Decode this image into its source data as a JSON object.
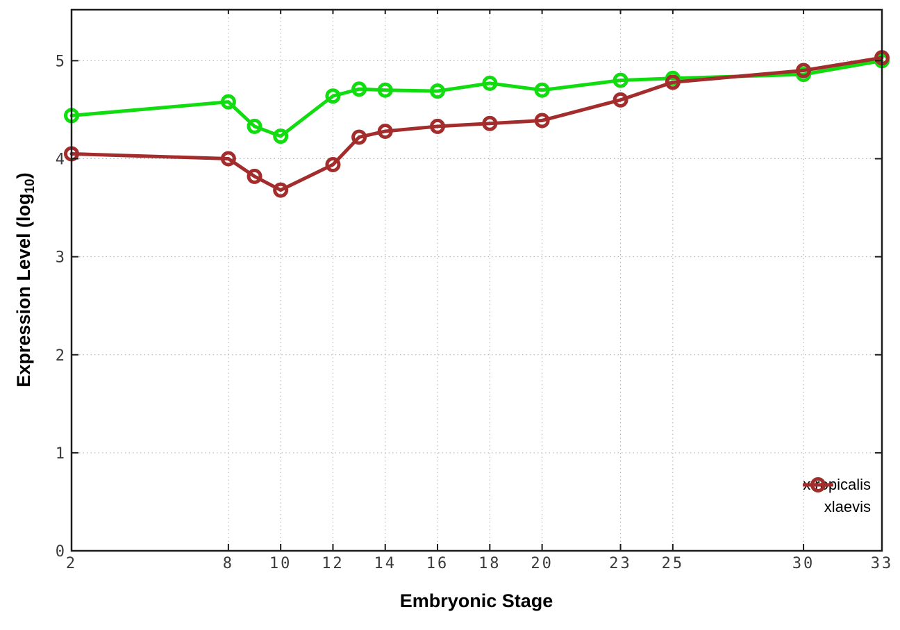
{
  "figure": {
    "xlabel": "Embryonic Stage",
    "ylabel": {
      "prefix": "Expression Level (log",
      "sub": "10",
      "suffix": ")"
    },
    "background": "#ffffff"
  },
  "chart_data": {
    "type": "line",
    "title": "",
    "xlabel": "Embryonic Stage",
    "ylabel": "Expression Level (log10)",
    "x": [
      2,
      8,
      9,
      10,
      12,
      13,
      14,
      16,
      18,
      20,
      23,
      25,
      30,
      33
    ],
    "series": [
      {
        "name": "xtropicalis",
        "color": "#10dc10",
        "values": [
          4.44,
          4.58,
          4.33,
          4.23,
          4.64,
          4.71,
          4.7,
          4.69,
          4.77,
          4.7,
          4.8,
          4.82,
          4.86,
          5.0
        ]
      },
      {
        "name": "xlaevis",
        "color": "#a32c2c",
        "values": [
          4.05,
          4.0,
          3.82,
          3.68,
          3.94,
          4.22,
          4.28,
          4.33,
          4.36,
          4.39,
          4.6,
          4.78,
          4.9,
          5.03
        ]
      }
    ],
    "xticks": [
      2,
      8,
      10,
      12,
      14,
      16,
      18,
      20,
      23,
      25,
      30,
      33
    ],
    "yticks": [
      0,
      1,
      2,
      3,
      4,
      5
    ],
    "xlim": [
      2,
      33
    ],
    "ylim": [
      0,
      5.52
    ],
    "grid": "dotted",
    "legend_position": "inside-right-bottom",
    "marker": "open-circle",
    "axis_color": "#1c1c1c",
    "tick_label_color": "#3a3a3a",
    "grid_color": "#aaaaaa"
  }
}
